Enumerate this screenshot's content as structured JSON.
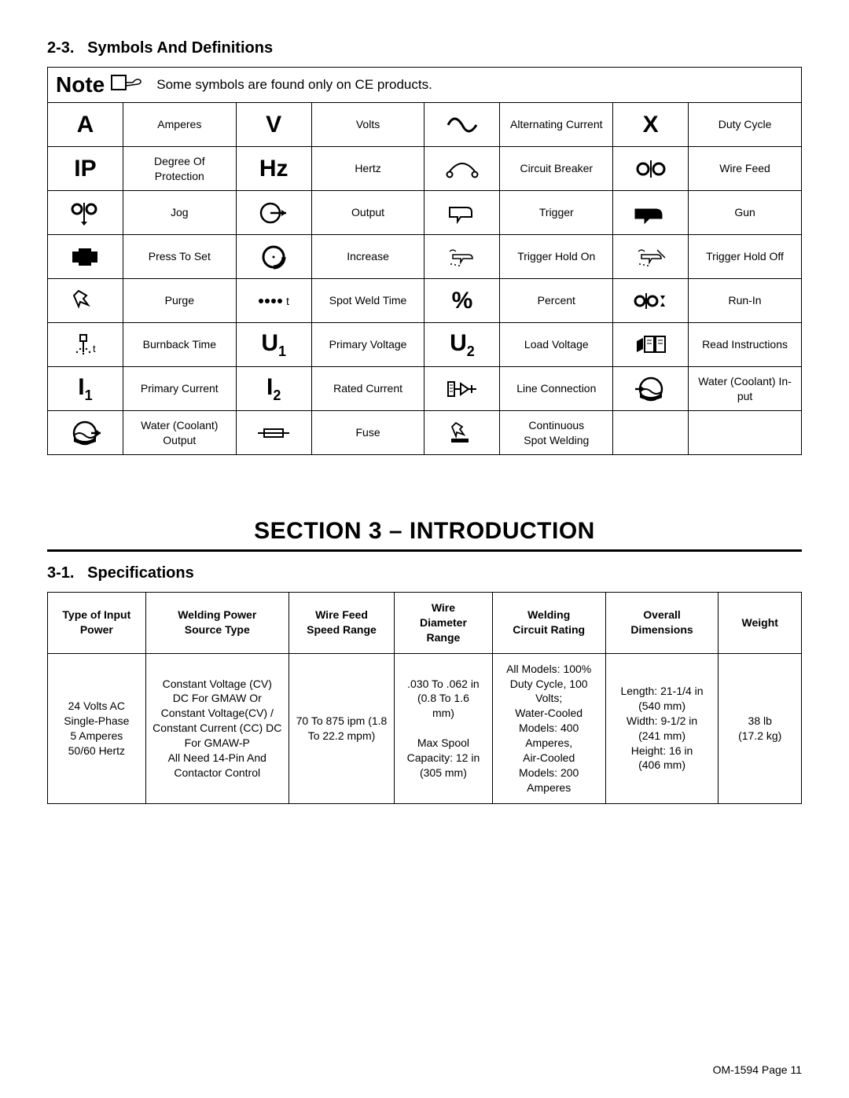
{
  "subsection_symbols": {
    "number": "2-3.",
    "title": "Symbols And Definitions"
  },
  "note": {
    "label": "Note",
    "text": "Some symbols are found only on CE products."
  },
  "symbols": {
    "rows": [
      [
        {
          "sym": "A",
          "sym_class": "sym-big",
          "label": "Amperes"
        },
        {
          "sym": "V",
          "sym_class": "sym-big",
          "label": "Volts"
        },
        {
          "icon": "ac",
          "label": "Alternating Current"
        },
        {
          "sym": "X",
          "sym_class": "sym-big",
          "label": "Duty Cycle"
        }
      ],
      [
        {
          "sym": "IP",
          "sym_class": "sym-big",
          "label": "Degree Of\nProtection"
        },
        {
          "sym": "Hz",
          "sym_class": "sym-big",
          "label": "Hertz"
        },
        {
          "icon": "breaker",
          "label": "Circuit Breaker"
        },
        {
          "icon": "wirefeed",
          "label": "Wire Feed"
        }
      ],
      [
        {
          "icon": "jog",
          "label": "Jog"
        },
        {
          "icon": "output",
          "label": "Output"
        },
        {
          "icon": "trigger",
          "label": "Trigger"
        },
        {
          "icon": "gun",
          "label": "Gun"
        }
      ],
      [
        {
          "icon": "press",
          "label": "Press To Set"
        },
        {
          "icon": "increase",
          "label": "Increase"
        },
        {
          "icon": "trighold_on",
          "label": "Trigger Hold On"
        },
        {
          "icon": "trighold_off",
          "label": "Trigger Hold Off"
        }
      ],
      [
        {
          "icon": "purge",
          "label": "Purge"
        },
        {
          "icon": "spotweldtime",
          "label": "Spot Weld Time"
        },
        {
          "sym": "%",
          "sym_class": "sym-big",
          "label": "Percent"
        },
        {
          "icon": "runin",
          "label": "Run-In"
        }
      ],
      [
        {
          "icon": "burnback",
          "label": "Burnback Time"
        },
        {
          "sym_html": "U<sub>1</sub>",
          "sym_class": "sym-sub",
          "label": "Primary Voltage"
        },
        {
          "sym_html": "U<sub>2</sub>",
          "sym_class": "sym-sub",
          "label": "Load Voltage"
        },
        {
          "icon": "readinst",
          "label": "Read Instructions"
        }
      ],
      [
        {
          "sym_html": "I<sub>1</sub>",
          "sym_class": "sym-sub",
          "label": "Primary Current"
        },
        {
          "sym_html": "I<sub>2</sub>",
          "sym_class": "sym-sub",
          "label": "Rated Current"
        },
        {
          "icon": "lineconn",
          "label": "Line Connection"
        },
        {
          "icon": "coolant_in",
          "label": "Water (Coolant) In-\nput"
        }
      ],
      [
        {
          "icon": "coolant_out",
          "label": "Water (Coolant)\nOutput"
        },
        {
          "icon": "fuse",
          "label": "Fuse"
        },
        {
          "icon": "contspot",
          "label": "Continuous\nSpot Welding"
        },
        {
          "blank": true
        }
      ]
    ]
  },
  "section_intro": {
    "title": "SECTION 3 – INTRODUCTION"
  },
  "subsection_spec": {
    "number": "3-1.",
    "title": "Specifications"
  },
  "spec_table": {
    "headers": [
      "Type of Input\nPower",
      "Welding Power\nSource Type",
      "Wire Feed\nSpeed Range",
      "Wire\nDiameter\nRange",
      "Welding\nCircuit Rating",
      "Overall\nDimensions",
      "Weight"
    ],
    "col_widths": [
      "13%",
      "19%",
      "14%",
      "13%",
      "15%",
      "15%",
      "11%"
    ],
    "row": [
      "24 Volts AC\nSingle-Phase\n5 Amperes\n50/60 Hertz",
      "Constant Voltage (CV)\nDC For GMAW Or\nConstant Voltage(CV) /\nConstant Current (CC) DC\nFor GMAW-P\nAll Need 14-Pin And\nContactor Control",
      "70 To 875 ipm (1.8\nTo 22.2 mpm)",
      ".030 To .062 in\n(0.8 To 1.6\nmm)\n\nMax Spool\nCapacity: 12 in\n(305 mm)",
      "All Models: 100%\nDuty Cycle, 100\nVolts;\nWater-Cooled\nModels: 400\nAmperes,\nAir-Cooled\nModels: 200\nAmperes",
      "Length: 21-1/4 in\n(540 mm)\nWidth: 9-1/2 in\n(241 mm)\nHeight: 16 in\n(406 mm)",
      "38 lb\n(17.2 kg)"
    ]
  },
  "footer": {
    "doc": "OM-1594",
    "page": "Page 11"
  }
}
